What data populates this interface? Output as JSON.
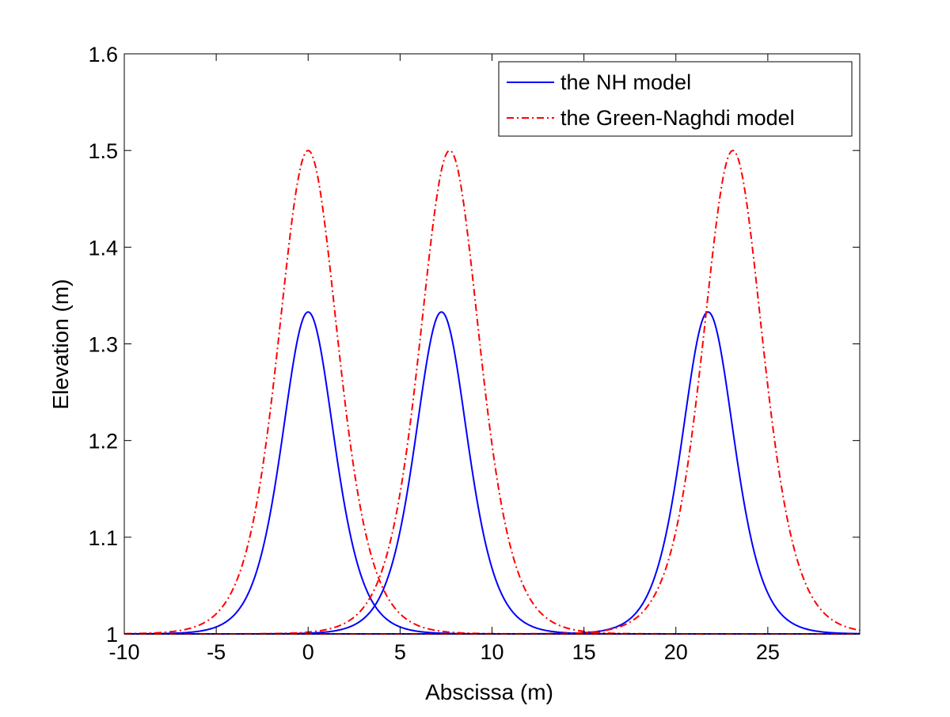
{
  "chart_data": {
    "type": "line",
    "title": "",
    "xlabel": "Abscissa (m)",
    "ylabel": "Elevation (m)",
    "xlim": [
      -10,
      30
    ],
    "ylim": [
      1,
      1.6
    ],
    "xticks": [
      -10,
      -5,
      0,
      5,
      10,
      15,
      20,
      25
    ],
    "xtick_labels": [
      "-10",
      "-5",
      "0",
      "5",
      "10",
      "15",
      "20",
      "25"
    ],
    "yticks": [
      1,
      1.1,
      1.2,
      1.3,
      1.4,
      1.5,
      1.6
    ],
    "ytick_labels": [
      "1",
      "1.1",
      "1.2",
      "1.3",
      "1.4",
      "1.5",
      "1.6"
    ],
    "grid": false,
    "legend_position": "top-right",
    "series": [
      {
        "name": "the NH model",
        "color": "#0000ff",
        "style": "solid",
        "baseline": 1.0,
        "pulses": [
          {
            "center": 0.0,
            "amplitude": 0.333,
            "width": 1.92
          },
          {
            "center": 7.25,
            "amplitude": 0.333,
            "width": 1.92
          },
          {
            "center": 21.75,
            "amplitude": 0.333,
            "width": 1.92
          }
        ]
      },
      {
        "name": "the Green-Naghdi model",
        "color": "#ff0000",
        "style": "dashdot",
        "baseline": 1.0,
        "pulses": [
          {
            "center": 0.0,
            "amplitude": 0.5,
            "width": 2.2
          },
          {
            "center": 7.7,
            "amplitude": 0.5,
            "width": 2.2
          },
          {
            "center": 23.1,
            "amplitude": 0.5,
            "width": 2.2
          }
        ]
      }
    ]
  }
}
